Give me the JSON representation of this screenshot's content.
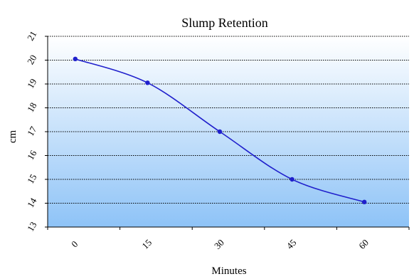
{
  "chart_data": {
    "type": "line",
    "title": "Slump Retention",
    "xlabel": "Minutes",
    "ylabel": "cm",
    "categories": [
      "0",
      "15",
      "30",
      "45",
      "60"
    ],
    "series": [
      {
        "values": [
          20.05,
          19.05,
          17.0,
          15.0,
          14.05
        ]
      }
    ],
    "ylim": [
      13,
      21
    ],
    "yticks": [
      "13",
      "14",
      "15",
      "16",
      "17",
      "18",
      "19",
      "20",
      "21"
    ],
    "grid": "horizontal dotted",
    "line_color": "#2020cc",
    "plot_bg_top": "#ffffff",
    "plot_bg_bottom": "#8ec3f7"
  }
}
